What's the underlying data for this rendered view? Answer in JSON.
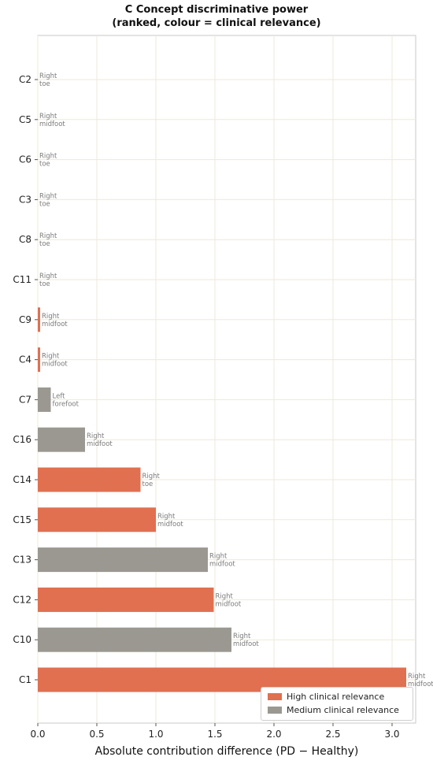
{
  "chart_data": {
    "type": "bar",
    "orientation": "horizontal",
    "title": "C  Concept discriminative power",
    "subtitle": "(ranked, colour = clinical relevance)",
    "xlabel": "Absolute contribution difference (PD − Healthy)",
    "ylabel": "",
    "xlim": [
      0,
      3.2
    ],
    "x_ticks": [
      "0.0",
      "0.5",
      "1.0",
      "1.5",
      "2.0",
      "2.5",
      "3.0"
    ],
    "x_tick_values": [
      0,
      0.5,
      1.0,
      1.5,
      2.0,
      2.5,
      3.0
    ],
    "grid": true,
    "legend_position": "bottom-right",
    "legend": [
      {
        "label": "High clinical relevance",
        "color": "#e07050"
      },
      {
        "label": "Medium clinical relevance",
        "color": "#9a9890"
      }
    ],
    "bars": [
      {
        "concept": "C2",
        "value": 0.0,
        "relevance": "medium",
        "annotation": [
          "Right",
          "toe"
        ]
      },
      {
        "concept": "C5",
        "value": 0.0,
        "relevance": "medium",
        "annotation": [
          "Right",
          "midfoot"
        ]
      },
      {
        "concept": "C6",
        "value": 0.0,
        "relevance": "medium",
        "annotation": [
          "Right",
          "toe"
        ]
      },
      {
        "concept": "C3",
        "value": 0.0,
        "relevance": "medium",
        "annotation": [
          "Right",
          "toe"
        ]
      },
      {
        "concept": "C8",
        "value": 0.0,
        "relevance": "medium",
        "annotation": [
          "Right",
          "toe"
        ]
      },
      {
        "concept": "C11",
        "value": 0.0,
        "relevance": "medium",
        "annotation": [
          "Right",
          "toe"
        ]
      },
      {
        "concept": "C9",
        "value": 0.02,
        "relevance": "high",
        "annotation": [
          "Right",
          "midfoot"
        ]
      },
      {
        "concept": "C4",
        "value": 0.02,
        "relevance": "high",
        "annotation": [
          "Right",
          "midfoot"
        ]
      },
      {
        "concept": "C7",
        "value": 0.11,
        "relevance": "medium",
        "annotation": [
          "Left",
          "forefoot"
        ]
      },
      {
        "concept": "C16",
        "value": 0.4,
        "relevance": "medium",
        "annotation": [
          "Right",
          "midfoot"
        ]
      },
      {
        "concept": "C14",
        "value": 0.87,
        "relevance": "high",
        "annotation": [
          "Right",
          "toe"
        ]
      },
      {
        "concept": "C15",
        "value": 1.0,
        "relevance": "high",
        "annotation": [
          "Right",
          "midfoot"
        ]
      },
      {
        "concept": "C13",
        "value": 1.44,
        "relevance": "medium",
        "annotation": [
          "Right",
          "midfoot"
        ]
      },
      {
        "concept": "C12",
        "value": 1.49,
        "relevance": "high",
        "annotation": [
          "Right",
          "midfoot"
        ]
      },
      {
        "concept": "C10",
        "value": 1.64,
        "relevance": "medium",
        "annotation": [
          "Right",
          "midfoot"
        ]
      },
      {
        "concept": "C1",
        "value": 3.12,
        "relevance": "high",
        "annotation": [
          "Right",
          "midfoot"
        ]
      }
    ]
  }
}
